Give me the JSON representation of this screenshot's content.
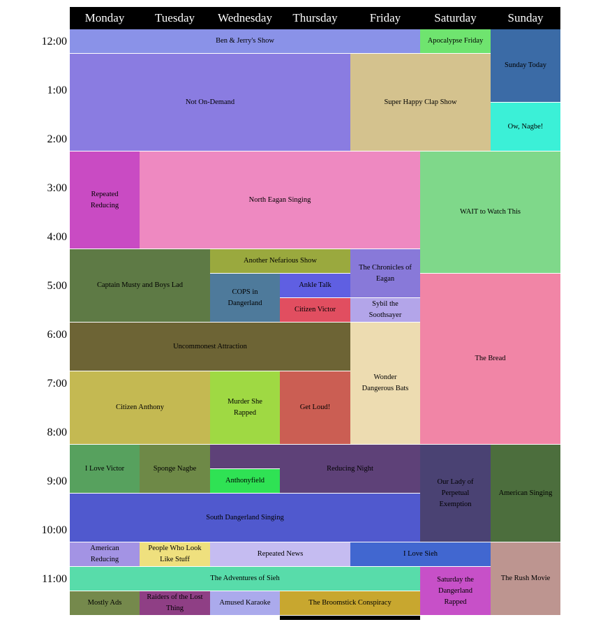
{
  "page": {
    "background": "#ffffff",
    "block_text_color": "#000000"
  },
  "header": {
    "bg": "#000000",
    "text_color": "#ffffff",
    "days": [
      "Monday",
      "Tuesday",
      "Wednesday",
      "Thursday",
      "Friday",
      "Saturday",
      "Sunday"
    ]
  },
  "time_labels": [
    "12:00",
    "1:00",
    "2:00",
    "3:00",
    "4:00",
    "5:00",
    "6:00",
    "7:00",
    "8:00",
    "9:00",
    "10:00",
    "11:00"
  ],
  "chart_data": {
    "type": "table",
    "title": "Weekly TV program schedule grid",
    "columns": [
      "Monday",
      "Tuesday",
      "Wednesday",
      "Thursday",
      "Friday",
      "Saturday",
      "Sunday"
    ],
    "y_axis": {
      "tick_labels": [
        "12:00",
        "1:00",
        "2:00",
        "3:00",
        "4:00",
        "5:00",
        "6:00",
        "7:00",
        "8:00",
        "9:00",
        "10:00",
        "11:00"
      ],
      "units": "hours offset from 12:00, half-hour slots",
      "range_hours": [
        0,
        12
      ]
    },
    "shows": [
      {
        "label": "Ben & Jerry's Show",
        "day": 0,
        "span": 5,
        "start": 0,
        "end": 0.5,
        "color": "#8a92e8"
      },
      {
        "label": "Apocalypse Friday",
        "day": 5,
        "span": 1,
        "start": 0,
        "end": 0.5,
        "color": "#6fe46f"
      },
      {
        "label": "Sunday Today",
        "day": 6,
        "span": 1,
        "start": 0,
        "end": 1.5,
        "color": "#3b6ba6"
      },
      {
        "label": "Not On-Demand",
        "day": 0,
        "span": 4,
        "start": 0.5,
        "end": 2.5,
        "color": "#8a7ce1"
      },
      {
        "label": "Super Happy Clap Show",
        "day": 4,
        "span": 2,
        "start": 0.5,
        "end": 2.5,
        "color": "#d4c28e"
      },
      {
        "label": "Ow, Nagbe!",
        "day": 6,
        "span": 1,
        "start": 1.5,
        "end": 2.5,
        "color": "#3bf0d7"
      },
      {
        "label": "Repeated\nReducing",
        "day": 0,
        "span": 1,
        "start": 2.5,
        "end": 4.5,
        "color": "#c94bc3"
      },
      {
        "label": "North Eagan Singing",
        "day": 1,
        "span": 4,
        "start": 2.5,
        "end": 4.5,
        "color": "#ee89c1"
      },
      {
        "label": "WAIT to Watch This",
        "day": 5,
        "span": 2,
        "start": 2.5,
        "end": 5,
        "color": "#7fd88a"
      },
      {
        "label": "Captain Musty and Boys Lad",
        "day": 0,
        "span": 2,
        "start": 4.5,
        "end": 6,
        "color": "#5e7a45"
      },
      {
        "label": "Another Nefarious Show",
        "day": 2,
        "span": 2,
        "start": 4.5,
        "end": 5,
        "color": "#9aa93e"
      },
      {
        "label": "The Chronicles of\nEagan",
        "day": 4,
        "span": 1,
        "start": 4.5,
        "end": 5.5,
        "color": "#8879d9"
      },
      {
        "label": "COPS in\nDangerland",
        "day": 2,
        "span": 1,
        "start": 5,
        "end": 6,
        "color": "#4e7a9b"
      },
      {
        "label": "Ankle Talk",
        "day": 3,
        "span": 1,
        "start": 5,
        "end": 5.5,
        "color": "#5f5fe2"
      },
      {
        "label": "Citizen Victor",
        "day": 3,
        "span": 1,
        "start": 5.5,
        "end": 6,
        "color": "#e14e60"
      },
      {
        "label": "Sybil the\nSoothsayer",
        "day": 4,
        "span": 1,
        "start": 5.5,
        "end": 6,
        "color": "#b3a5e9"
      },
      {
        "label": "The Bread",
        "day": 5,
        "span": 2,
        "start": 5,
        "end": 8.5,
        "color": "#f185a6"
      },
      {
        "label": "Uncommonest Attraction",
        "day": 0,
        "span": 4,
        "start": 6,
        "end": 7,
        "color": "#6d6435"
      },
      {
        "label": "Wonder\nDangerous Bats",
        "day": 4,
        "span": 1,
        "start": 6,
        "end": 8.5,
        "color": "#eddcb1"
      },
      {
        "label": "Citizen Anthony",
        "day": 0,
        "span": 2,
        "start": 7,
        "end": 8.5,
        "color": "#c4b952"
      },
      {
        "label": "Murder She\nRapped",
        "day": 2,
        "span": 1,
        "start": 7,
        "end": 8.5,
        "color": "#9fd943"
      },
      {
        "label": "Get Loud!",
        "day": 3,
        "span": 1,
        "start": 7,
        "end": 8.5,
        "color": "#cb5e53"
      },
      {
        "label": "I Love Victor",
        "day": 0,
        "span": 1,
        "start": 8.5,
        "end": 9.5,
        "color": "#57a15e"
      },
      {
        "label": "Sponge Nagbe",
        "day": 1,
        "span": 1,
        "start": 8.5,
        "end": 9.5,
        "color": "#6e8947"
      },
      {
        "label": "",
        "day": 2,
        "span": 1,
        "start": 8.5,
        "end": 9,
        "color": "#5e4178"
      },
      {
        "label": "Anthonyfield",
        "day": 2,
        "span": 1,
        "start": 9,
        "end": 9.5,
        "color": "#2fe254"
      },
      {
        "label": "Reducing Night",
        "day": 3,
        "span": 2,
        "start": 8.5,
        "end": 9.5,
        "color": "#5e4178"
      },
      {
        "label": "Our Lady of\nPerpetual\nExemption",
        "day": 5,
        "span": 1,
        "start": 8.5,
        "end": 10.5,
        "color": "#4a4273"
      },
      {
        "label": "American Singing",
        "day": 6,
        "span": 1,
        "start": 8.5,
        "end": 10.5,
        "color": "#4c6e3d"
      },
      {
        "label": "South Dangerland Singing",
        "day": 0,
        "span": 5,
        "start": 9.5,
        "end": 10.5,
        "color": "#5059ce"
      },
      {
        "label": "American\nReducing",
        "day": 0,
        "span": 1,
        "start": 10.5,
        "end": 11,
        "color": "#a393e4"
      },
      {
        "label": "People Who Look\nLike Stuff",
        "day": 1,
        "span": 1,
        "start": 10.5,
        "end": 11,
        "color": "#efe07e"
      },
      {
        "label": "Repeated News",
        "day": 2,
        "span": 2,
        "start": 10.5,
        "end": 11,
        "color": "#c5bcf1"
      },
      {
        "label": "I Love Sieh",
        "day": 4,
        "span": 2,
        "start": 10.5,
        "end": 11,
        "color": "#4167d0"
      },
      {
        "label": "The Rush Movie",
        "day": 6,
        "span": 1,
        "start": 10.5,
        "end": 12,
        "color": "#bd9590"
      },
      {
        "label": "The Adventures of Sieh",
        "day": 0,
        "span": 5,
        "start": 11,
        "end": 11.5,
        "color": "#58dcaa"
      },
      {
        "label": "Saturday the\nDangerland\nRapped",
        "day": 5,
        "span": 1,
        "start": 11,
        "end": 12,
        "color": "#c750c8"
      },
      {
        "label": "Mostly Ads",
        "day": 0,
        "span": 1,
        "start": 11.5,
        "end": 12,
        "color": "#75894c"
      },
      {
        "label": "Raiders of the Lost\nThing",
        "day": 1,
        "span": 1,
        "start": 11.5,
        "end": 12,
        "color": "#8f3f85"
      },
      {
        "label": "Amused Karaoke",
        "day": 2,
        "span": 1,
        "start": 11.5,
        "end": 12,
        "color": "#abaaec"
      },
      {
        "label": "The Broomstick Conspiracy",
        "day": 3,
        "span": 2,
        "start": 11.5,
        "end": 12,
        "color": "#c8a72f"
      },
      {
        "label": "",
        "day": 3,
        "span": 2,
        "start": 12,
        "end": 12.1,
        "color": "#000000"
      }
    ]
  }
}
